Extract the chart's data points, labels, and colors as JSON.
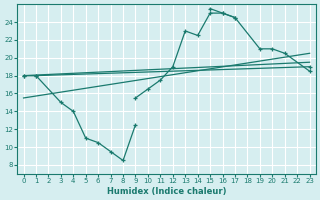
{
  "xlabel": "Humidex (Indice chaleur)",
  "background_color": "#d6eef0",
  "grid_color": "#ffffff",
  "line_color": "#1a7a6e",
  "xlim": [
    -0.5,
    23.5
  ],
  "ylim": [
    7,
    26
  ],
  "yticks": [
    8,
    10,
    12,
    14,
    16,
    18,
    20,
    22,
    24
  ],
  "xticks": [
    0,
    1,
    2,
    3,
    4,
    5,
    6,
    7,
    8,
    9,
    10,
    11,
    12,
    13,
    14,
    15,
    16,
    17,
    18,
    19,
    20,
    21,
    22,
    23
  ],
  "series": {
    "jagged": {
      "x": [
        0,
        1,
        3,
        4,
        5,
        6,
        7,
        8,
        9
      ],
      "y": [
        18,
        18,
        15,
        14,
        11,
        10.5,
        9.5,
        8.5,
        12.5
      ]
    },
    "peaked": {
      "x": [
        9,
        10,
        11,
        12,
        13,
        14,
        15,
        16,
        17
      ],
      "y": [
        15.5,
        16.5,
        17.5,
        19,
        23,
        22.5,
        25,
        25,
        24.5
      ]
    },
    "descending": {
      "x": [
        15,
        16,
        17,
        19,
        20,
        21,
        23
      ],
      "y": [
        25.5,
        25,
        24.5,
        21,
        21,
        20.5,
        18.5
      ]
    },
    "flat_right": {
      "x": [
        0,
        1,
        23
      ],
      "y": [
        18,
        18,
        19
      ]
    }
  },
  "regression1": {
    "x": [
      0,
      23
    ],
    "y": [
      18,
      19.5
    ]
  },
  "regression2": {
    "x": [
      0,
      23
    ],
    "y": [
      15.5,
      20.5
    ]
  }
}
